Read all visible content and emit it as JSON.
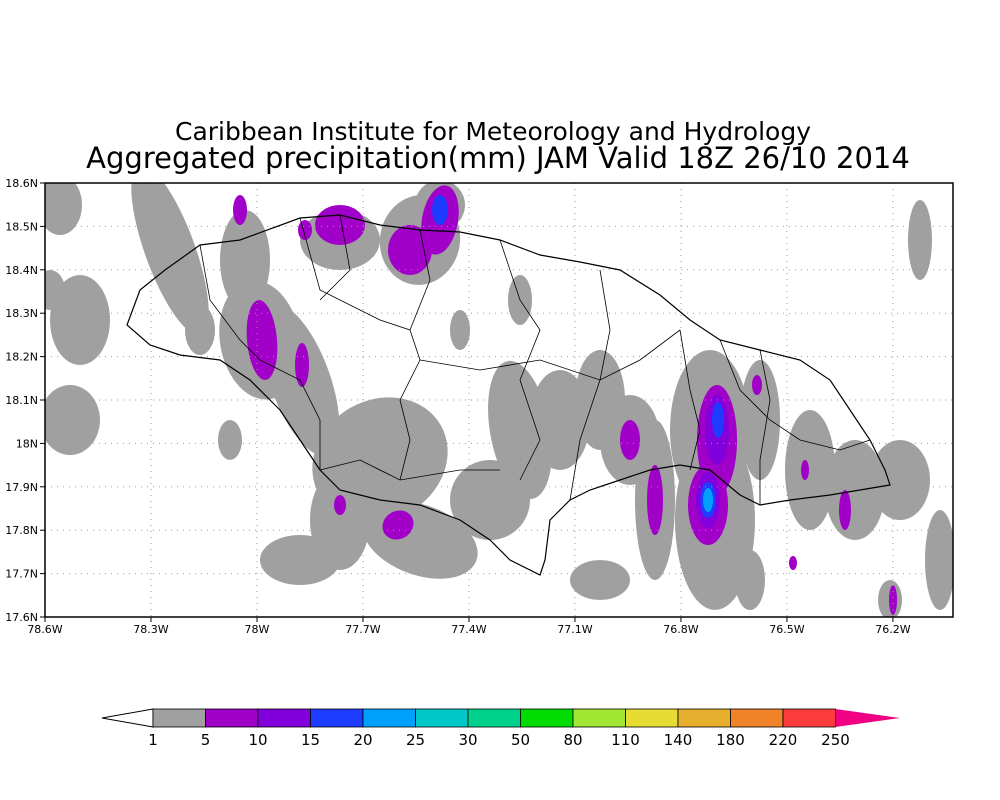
{
  "title": {
    "line1": "Caribbean Institute for Meteorology and Hydrology",
    "line2": "Aggregated precipitation(mm) JAM Valid 18Z 26/10 2014"
  },
  "map": {
    "region": "Jamaica",
    "lon_range_deg_w": [
      78.6,
      76.03
    ],
    "lat_range_deg_n": [
      17.6,
      18.6
    ],
    "lat_ticks": [
      "18.6N",
      "18.5N",
      "18.4N",
      "18.3N",
      "18.2N",
      "18.1N",
      "18N",
      "17.9N",
      "17.8N",
      "17.7N",
      "17.6N"
    ],
    "lon_ticks": [
      "78.6W",
      "78.3W",
      "78W",
      "77.7W",
      "77.4W",
      "77.1W",
      "76.8W",
      "76.5W",
      "76.2W"
    ]
  },
  "colorbar": {
    "labels": [
      "1",
      "5",
      "10",
      "15",
      "20",
      "25",
      "30",
      "50",
      "80",
      "110",
      "140",
      "180",
      "220",
      "250"
    ],
    "colors": [
      "#a0a0a0",
      "#a000c8",
      "#8200dc",
      "#1e3cff",
      "#00a0ff",
      "#00c8c8",
      "#00d28c",
      "#00dc00",
      "#a0e632",
      "#e6dc32",
      "#e6af2d",
      "#f08228",
      "#fa3c3c"
    ],
    "under_color": "#ffffff",
    "over_color": "#f00082"
  }
}
